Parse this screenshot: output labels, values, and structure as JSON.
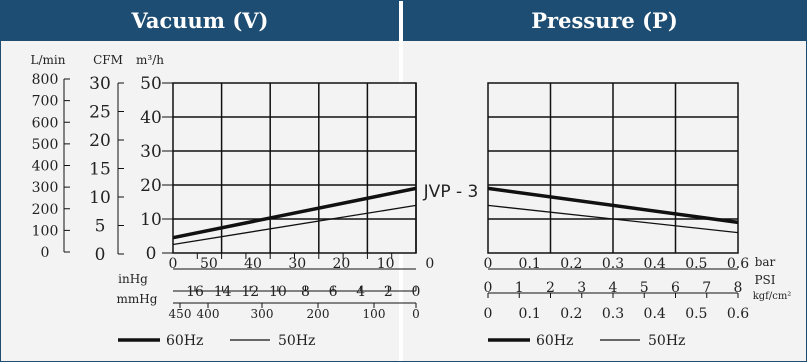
{
  "header": {
    "vacuum_title": "Vacuum (V)",
    "pressure_title": "Pressure (P)"
  },
  "units": {
    "l_min": "L/min",
    "cfm": "CFM",
    "m3h": "m³/h",
    "inhg": "inHg",
    "mmhg": "mmHg",
    "bar": "bar",
    "psi": "PSI",
    "kgf": "kgf/cm²"
  },
  "scales": {
    "l_min": [
      "800",
      "700",
      "600",
      "500",
      "400",
      "300",
      "200",
      "100",
      "0"
    ],
    "cfm": [
      "30",
      "25",
      "20",
      "15",
      "10",
      "5",
      "0"
    ],
    "m3h": [
      "50",
      "40",
      "30",
      "20",
      "10",
      "0"
    ],
    "vacuum_kpa": [
      "0",
      "50",
      "40",
      "30",
      "20",
      "10",
      "0"
    ],
    "inhg": [
      "16",
      "14",
      "12",
      "10",
      "8",
      "6",
      "4",
      "2",
      "0"
    ],
    "mmhg": [
      "450",
      "400",
      "300",
      "200",
      "100",
      "0"
    ],
    "pressure_bar": [
      "0",
      "0.1",
      "0.2",
      "0.3",
      "0.4",
      "0.5",
      "0.6"
    ],
    "pressure_psi": [
      "0",
      "1",
      "2",
      "3",
      "4",
      "5",
      "6",
      "7",
      "8"
    ],
    "pressure_kgf": [
      "0",
      "0.1",
      "0.2",
      "0.3",
      "0.4",
      "0.5",
      "0.6"
    ]
  },
  "curve_label": "JVP - 3",
  "legend": [
    {
      "name": "60Hz",
      "weight": "thick"
    },
    {
      "name": "50Hz",
      "weight": "thin"
    }
  ],
  "chart_data": [
    {
      "type": "line",
      "title": "Vacuum (V)",
      "ylabel": "m³/h",
      "ylim": [
        0,
        50
      ],
      "x_direction": "reversed",
      "series": [
        {
          "name": "60Hz",
          "x": [
            55,
            0
          ],
          "y": [
            4.5,
            19
          ]
        },
        {
          "name": "50Hz",
          "x": [
            55,
            0
          ],
          "y": [
            2.5,
            14
          ]
        }
      ]
    },
    {
      "type": "line",
      "title": "Pressure (P)",
      "xlabel": "bar",
      "xlim": [
        0,
        0.6
      ],
      "series": [
        {
          "name": "60Hz",
          "x": [
            0,
            0.6
          ],
          "y": [
            19,
            9
          ]
        },
        {
          "name": "50Hz",
          "x": [
            0,
            0.6
          ],
          "y": [
            14,
            6
          ]
        }
      ]
    }
  ],
  "colors": {
    "header": "#1e4d73",
    "panel": "#f3f3f3",
    "line": "#111111"
  }
}
